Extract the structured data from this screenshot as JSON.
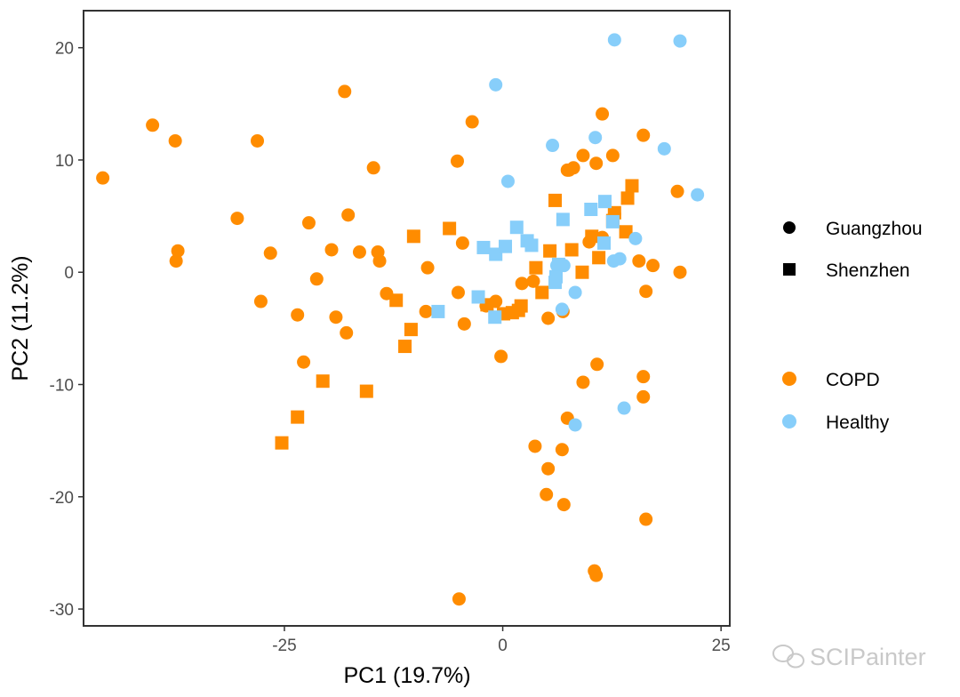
{
  "colors": {
    "COPD": "#ff8c00",
    "Healthy": "#87cefa",
    "panel_border": "#333333",
    "tick_text": "#4d4d4d",
    "watermark": "#c9c9c9"
  },
  "watermark": {
    "text": "SCIPainter",
    "icon": "wechat-icon"
  },
  "chart_data": {
    "type": "scatter",
    "xlabel": "PC1 (19.7%)",
    "ylabel": "PC2 (11.2%)",
    "xlim": [
      -48,
      26
    ],
    "ylim": [
      -31.5,
      23.3
    ],
    "x_ticks": [
      -25,
      0,
      25
    ],
    "x_tick_labels": [
      "-25",
      "0",
      "25"
    ],
    "y_ticks": [
      -30,
      -20,
      -10,
      0,
      10,
      20
    ],
    "y_tick_labels": [
      "-30",
      "-20",
      "-10",
      "0",
      "10",
      "20"
    ],
    "grid": false,
    "legend_position": "right",
    "legends": [
      {
        "title": "",
        "entries": [
          {
            "label": "Guangzhou",
            "shape": "circle"
          },
          {
            "label": "Shenzhen",
            "shape": "square"
          }
        ]
      },
      {
        "title": "",
        "entries": [
          {
            "label": "COPD",
            "color_key": "COPD"
          },
          {
            "label": "Healthy",
            "color_key": "Healthy"
          }
        ]
      }
    ],
    "series": [
      {
        "name": "COPD",
        "shape": "circle",
        "points": [
          [
            -45.8,
            8.4
          ],
          [
            -40.1,
            13.1
          ],
          [
            -37.5,
            11.7
          ],
          [
            -37.2,
            1.9
          ],
          [
            -37.4,
            1.0
          ],
          [
            -28.1,
            11.7
          ],
          [
            -30.4,
            4.8
          ],
          [
            -26.6,
            1.7
          ],
          [
            -27.7,
            -2.6
          ],
          [
            -18.1,
            16.1
          ],
          [
            -14.8,
            9.3
          ],
          [
            -17.7,
            5.1
          ],
          [
            -22.2,
            4.4
          ],
          [
            -19.6,
            2.0
          ],
          [
            -16.4,
            1.8
          ],
          [
            -14.3,
            1.8
          ],
          [
            -14.1,
            1.0
          ],
          [
            -21.3,
            -0.6
          ],
          [
            -13.3,
            -1.9
          ],
          [
            -23.5,
            -3.8
          ],
          [
            -19.1,
            -4.0
          ],
          [
            -17.9,
            -5.4
          ],
          [
            -22.8,
            -8.0
          ],
          [
            -5.2,
            9.9
          ],
          [
            -3.5,
            13.4
          ],
          [
            -8.6,
            0.4
          ],
          [
            -4.6,
            2.6
          ],
          [
            -8.8,
            -3.5
          ],
          [
            -5.1,
            -1.8
          ],
          [
            -4.4,
            -4.6
          ],
          [
            -1.9,
            -3.0
          ],
          [
            -0.8,
            -2.6
          ],
          [
            -0.2,
            -7.5
          ],
          [
            2.2,
            -1.0
          ],
          [
            3.5,
            -0.8
          ],
          [
            6.9,
            -3.5
          ],
          [
            5.2,
            -4.1
          ],
          [
            9.2,
            10.4
          ],
          [
            10.7,
            9.7
          ],
          [
            11.4,
            14.1
          ],
          [
            12.6,
            10.4
          ],
          [
            16.1,
            12.2
          ],
          [
            7.4,
            9.1
          ],
          [
            8.1,
            9.3
          ],
          [
            7.6,
            9.1
          ],
          [
            20.0,
            7.2
          ],
          [
            12.8,
            5.2
          ],
          [
            11.4,
            3.1
          ],
          [
            9.9,
            2.7
          ],
          [
            15.6,
            1.0
          ],
          [
            17.2,
            0.6
          ],
          [
            20.3,
            0.0
          ],
          [
            16.4,
            -1.7
          ],
          [
            7.4,
            -13.0
          ],
          [
            3.7,
            -15.5
          ],
          [
            6.8,
            -15.8
          ],
          [
            5.2,
            -17.5
          ],
          [
            5.0,
            -19.8
          ],
          [
            7.0,
            -20.7
          ],
          [
            10.8,
            -8.2
          ],
          [
            9.2,
            -9.8
          ],
          [
            16.1,
            -9.3
          ],
          [
            16.1,
            -11.1
          ],
          [
            16.4,
            -22.0
          ],
          [
            10.5,
            -26.6
          ],
          [
            10.7,
            -27.0
          ],
          [
            -5.0,
            -29.1
          ]
        ]
      },
      {
        "name": "COPD",
        "shape": "square",
        "points": [
          [
            -25.3,
            -15.2
          ],
          [
            -23.5,
            -12.9
          ],
          [
            -20.6,
            -9.7
          ],
          [
            -15.6,
            -10.6
          ],
          [
            -11.2,
            -6.6
          ],
          [
            -10.5,
            -5.1
          ],
          [
            -12.2,
            -2.5
          ],
          [
            -10.2,
            3.2
          ],
          [
            -6.1,
            3.9
          ],
          [
            -1.8,
            -2.9
          ],
          [
            0.1,
            -3.7
          ],
          [
            1.1,
            -3.6
          ],
          [
            1.8,
            -3.4
          ],
          [
            2.1,
            -3.0
          ],
          [
            4.5,
            -1.8
          ],
          [
            3.8,
            0.4
          ],
          [
            5.4,
            1.9
          ],
          [
            6.0,
            6.4
          ],
          [
            7.9,
            2.0
          ],
          [
            9.1,
            0.0
          ],
          [
            10.2,
            3.2
          ],
          [
            11.0,
            1.3
          ],
          [
            12.6,
            4.6
          ],
          [
            14.1,
            3.6
          ],
          [
            14.3,
            6.6
          ],
          [
            14.8,
            7.7
          ],
          [
            12.8,
            5.3
          ]
        ]
      },
      {
        "name": "Healthy",
        "shape": "circle",
        "points": [
          [
            -0.8,
            16.7
          ],
          [
            12.8,
            20.7
          ],
          [
            20.3,
            20.6
          ],
          [
            5.7,
            11.3
          ],
          [
            10.6,
            12.0
          ],
          [
            18.5,
            11.0
          ],
          [
            0.6,
            8.1
          ],
          [
            22.3,
            6.9
          ],
          [
            15.2,
            3.0
          ],
          [
            13.4,
            1.2
          ],
          [
            12.7,
            1.0
          ],
          [
            7.0,
            0.6
          ],
          [
            6.2,
            0.6
          ],
          [
            8.3,
            -1.8
          ],
          [
            6.8,
            -3.3
          ],
          [
            8.3,
            -13.6
          ],
          [
            13.9,
            -12.1
          ]
        ]
      },
      {
        "name": "Healthy",
        "shape": "square",
        "points": [
          [
            -7.4,
            -3.5
          ],
          [
            -2.8,
            -2.2
          ],
          [
            -2.2,
            2.2
          ],
          [
            -0.8,
            1.6
          ],
          [
            -0.9,
            -4.0
          ],
          [
            0.3,
            2.3
          ],
          [
            1.6,
            4.0
          ],
          [
            2.8,
            2.8
          ],
          [
            3.3,
            2.4
          ],
          [
            6.0,
            -0.9
          ],
          [
            6.1,
            -0.4
          ],
          [
            6.4,
            0.7
          ],
          [
            6.9,
            4.7
          ],
          [
            10.1,
            5.6
          ],
          [
            11.7,
            6.3
          ],
          [
            11.6,
            2.6
          ],
          [
            12.6,
            4.5
          ]
        ]
      }
    ]
  }
}
